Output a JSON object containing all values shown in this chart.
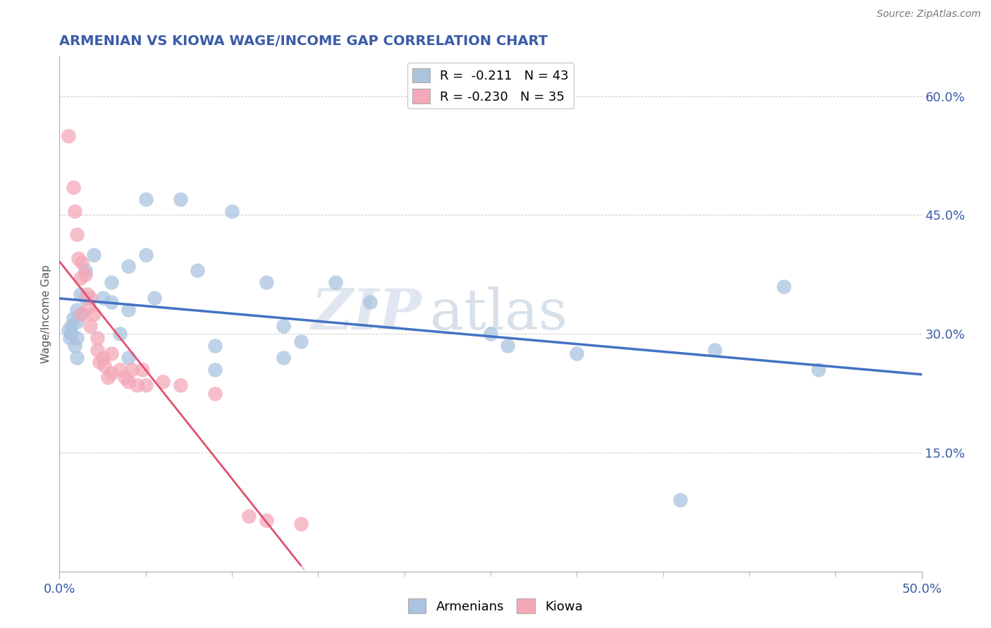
{
  "title": "ARMENIAN VS KIOWA WAGE/INCOME GAP CORRELATION CHART",
  "source": "Source: ZipAtlas.com",
  "ylabel": "Wage/Income Gap",
  "xlim": [
    0.0,
    0.5
  ],
  "ylim": [
    0.0,
    0.65
  ],
  "ytick_positions": [
    0.15,
    0.3,
    0.45,
    0.6
  ],
  "ytick_labels": [
    "15.0%",
    "30.0%",
    "45.0%",
    "60.0%"
  ],
  "title_color": "#3a5ca8",
  "title_fontsize": 14,
  "watermark_zip": "ZIP",
  "watermark_atlas": "atlas",
  "legend_r_armenian": "R =  -0.211",
  "legend_n_armenian": "N = 43",
  "legend_r_kiowa": "R = -0.230",
  "legend_n_kiowa": "N = 35",
  "armenian_color": "#aac4df",
  "kiowa_color": "#f4a8b8",
  "armenian_line_color": "#4472c4",
  "kiowa_line_color": "#e05070",
  "armenian_scatter": [
    [
      0.005,
      0.305
    ],
    [
      0.006,
      0.295
    ],
    [
      0.007,
      0.31
    ],
    [
      0.007,
      0.3
    ],
    [
      0.008,
      0.32
    ],
    [
      0.009,
      0.285
    ],
    [
      0.01,
      0.33
    ],
    [
      0.01,
      0.315
    ],
    [
      0.01,
      0.295
    ],
    [
      0.01,
      0.27
    ],
    [
      0.012,
      0.35
    ],
    [
      0.013,
      0.325
    ],
    [
      0.015,
      0.38
    ],
    [
      0.015,
      0.345
    ],
    [
      0.02,
      0.4
    ],
    [
      0.025,
      0.345
    ],
    [
      0.03,
      0.365
    ],
    [
      0.03,
      0.34
    ],
    [
      0.035,
      0.3
    ],
    [
      0.04,
      0.385
    ],
    [
      0.04,
      0.33
    ],
    [
      0.04,
      0.27
    ],
    [
      0.05,
      0.47
    ],
    [
      0.05,
      0.4
    ],
    [
      0.055,
      0.345
    ],
    [
      0.07,
      0.47
    ],
    [
      0.08,
      0.38
    ],
    [
      0.09,
      0.285
    ],
    [
      0.09,
      0.255
    ],
    [
      0.1,
      0.455
    ],
    [
      0.12,
      0.365
    ],
    [
      0.13,
      0.31
    ],
    [
      0.13,
      0.27
    ],
    [
      0.14,
      0.29
    ],
    [
      0.16,
      0.365
    ],
    [
      0.18,
      0.34
    ],
    [
      0.25,
      0.3
    ],
    [
      0.26,
      0.285
    ],
    [
      0.3,
      0.275
    ],
    [
      0.36,
      0.09
    ],
    [
      0.38,
      0.28
    ],
    [
      0.42,
      0.36
    ],
    [
      0.44,
      0.255
    ]
  ],
  "kiowa_scatter": [
    [
      0.005,
      0.55
    ],
    [
      0.008,
      0.485
    ],
    [
      0.009,
      0.455
    ],
    [
      0.01,
      0.425
    ],
    [
      0.011,
      0.395
    ],
    [
      0.012,
      0.37
    ],
    [
      0.013,
      0.39
    ],
    [
      0.013,
      0.325
    ],
    [
      0.015,
      0.375
    ],
    [
      0.016,
      0.35
    ],
    [
      0.017,
      0.335
    ],
    [
      0.018,
      0.345
    ],
    [
      0.018,
      0.31
    ],
    [
      0.02,
      0.325
    ],
    [
      0.022,
      0.295
    ],
    [
      0.022,
      0.28
    ],
    [
      0.023,
      0.265
    ],
    [
      0.025,
      0.27
    ],
    [
      0.026,
      0.26
    ],
    [
      0.028,
      0.245
    ],
    [
      0.03,
      0.275
    ],
    [
      0.03,
      0.25
    ],
    [
      0.035,
      0.255
    ],
    [
      0.038,
      0.245
    ],
    [
      0.04,
      0.24
    ],
    [
      0.042,
      0.255
    ],
    [
      0.045,
      0.235
    ],
    [
      0.048,
      0.255
    ],
    [
      0.05,
      0.235
    ],
    [
      0.06,
      0.24
    ],
    [
      0.07,
      0.235
    ],
    [
      0.09,
      0.225
    ],
    [
      0.11,
      0.07
    ],
    [
      0.12,
      0.065
    ],
    [
      0.14,
      0.06
    ]
  ],
  "background_color": "#ffffff",
  "grid_color": "#cccccc"
}
